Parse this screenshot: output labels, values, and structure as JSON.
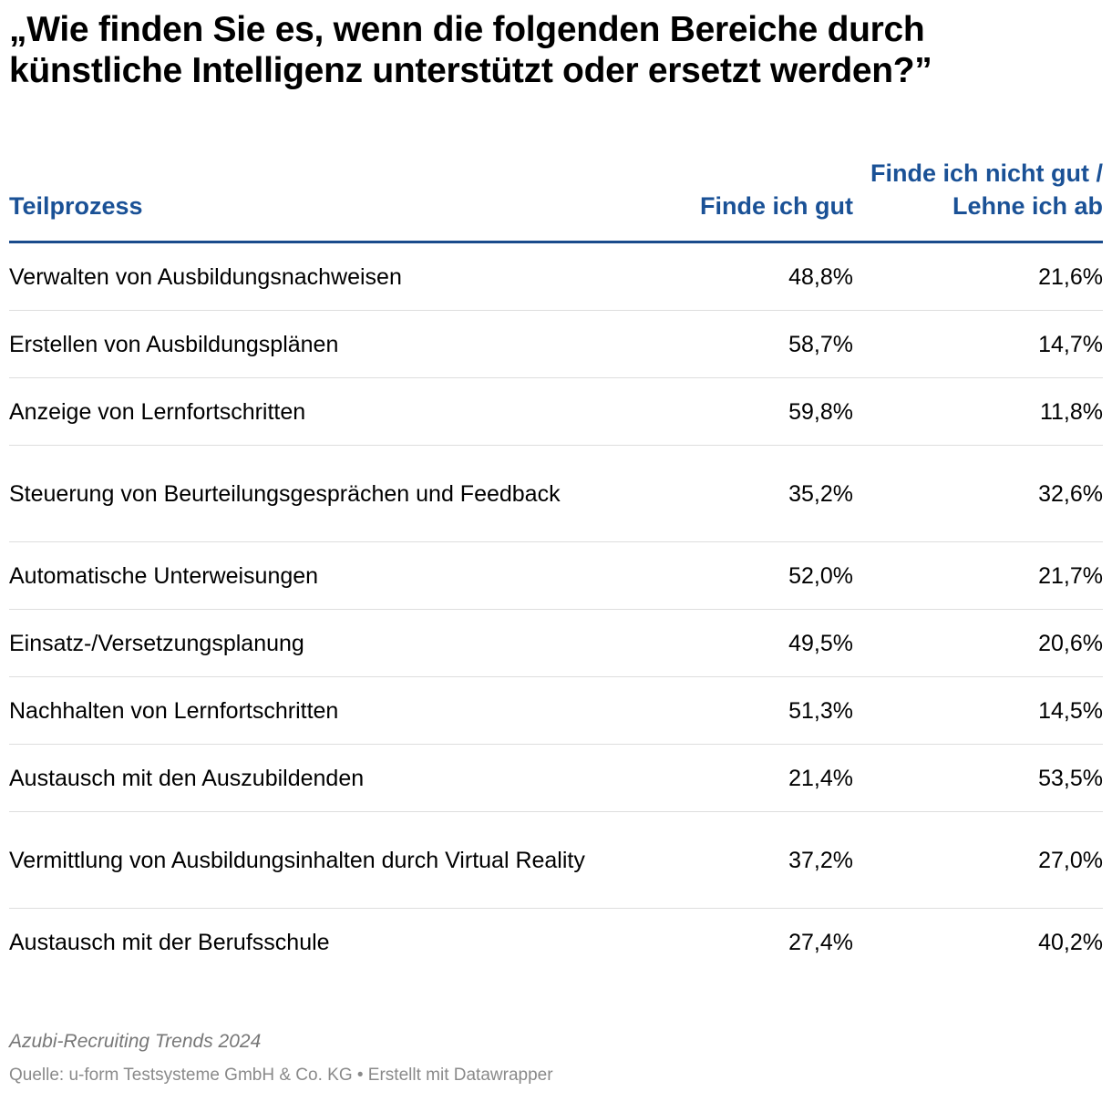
{
  "title": "„Wie finden Sie es, wenn die folgenden Bereiche durch künstliche Intelligenz unterstützt oder ersetzt werden?”",
  "columns": {
    "process": "Teilprozess",
    "good": "Finde ich gut",
    "bad": "Finde ich nicht gut / Lehne ich ab"
  },
  "rows": [
    {
      "process": "Verwalten von Ausbildungsnachweisen",
      "good": "48,8%",
      "bad": "21,6%"
    },
    {
      "process": "Erstellen von Ausbildungsplänen",
      "good": "58,7%",
      "bad": "14,7%"
    },
    {
      "process": "Anzeige von Lernfortschritten",
      "good": "59,8%",
      "bad": "11,8%"
    },
    {
      "process": "Steuerung von Beurteilungsgesprächen und Feedback",
      "good": "35,2%",
      "bad": "32,6%"
    },
    {
      "process": "Automatische Unterweisungen",
      "good": "52,0%",
      "bad": "21,7%"
    },
    {
      "process": "Einsatz-/Versetzungsplanung",
      "good": "49,5%",
      "bad": "20,6%"
    },
    {
      "process": "Nachhalten von Lernfortschritten",
      "good": "51,3%",
      "bad": "14,5%"
    },
    {
      "process": "Austausch mit den Auszubildenden",
      "good": "21,4%",
      "bad": "53,5%"
    },
    {
      "process": "Vermittlung von Ausbildungsinhalten durch Virtual Reality",
      "good": "37,2%",
      "bad": "27,0%"
    },
    {
      "process": "Austausch mit der Berufsschule",
      "good": "27,4%",
      "bad": "40,2%"
    }
  ],
  "note": "Azubi-Recruiting Trends 2024",
  "source": "Quelle: u-form Testsysteme GmbH & Co. KG  • Erstellt mit Datawrapper",
  "colors": {
    "header_text": "#1a5196",
    "header_rule": "#1a4b8c",
    "row_divider": "#dedede"
  },
  "chart_data": {
    "type": "table",
    "title": "„Wie finden Sie es, wenn die folgenden Bereiche durch künstliche Intelligenz unterstützt oder ersetzt werden?”",
    "columns": [
      "Teilprozess",
      "Finde ich gut",
      "Finde ich nicht gut / Lehne ich ab"
    ],
    "rows": [
      [
        "Verwalten von Ausbildungsnachweisen",
        48.8,
        21.6
      ],
      [
        "Erstellen von Ausbildungsplänen",
        58.7,
        14.7
      ],
      [
        "Anzeige von Lernfortschritten",
        59.8,
        11.8
      ],
      [
        "Steuerung von Beurteilungsgesprächen und Feedback",
        35.2,
        32.6
      ],
      [
        "Automatische Unterweisungen",
        52.0,
        21.7
      ],
      [
        "Einsatz-/Versetzungsplanung",
        49.5,
        20.6
      ],
      [
        "Nachhalten von Lernfortschritten",
        51.3,
        14.5
      ],
      [
        "Austausch mit den Auszubildenden",
        21.4,
        53.5
      ],
      [
        "Vermittlung von Ausbildungsinhalten durch Virtual Reality",
        37.2,
        27.0
      ],
      [
        "Austausch mit der Berufsschule",
        27.4,
        40.2
      ]
    ],
    "unit": "%"
  }
}
